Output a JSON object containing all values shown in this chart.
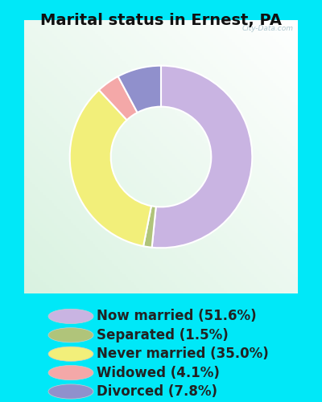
{
  "title": "Marital status in Ernest, PA",
  "slices": [
    51.6,
    1.5,
    35.0,
    4.1,
    7.8
  ],
  "labels": [
    "Now married (51.6%)",
    "Separated (1.5%)",
    "Never married (35.0%)",
    "Widowed (4.1%)",
    "Divorced (7.8%)"
  ],
  "colors": [
    "#c9b4e2",
    "#b0c47a",
    "#f2ef7a",
    "#f4a8a8",
    "#9090cc"
  ],
  "outer_bg": "#00e8f8",
  "chart_bg_color": "#e0f0e8",
  "title_fontsize": 14,
  "legend_fontsize": 12,
  "donut_width": 0.45,
  "start_angle": 90,
  "watermark": "City-Data.com"
}
